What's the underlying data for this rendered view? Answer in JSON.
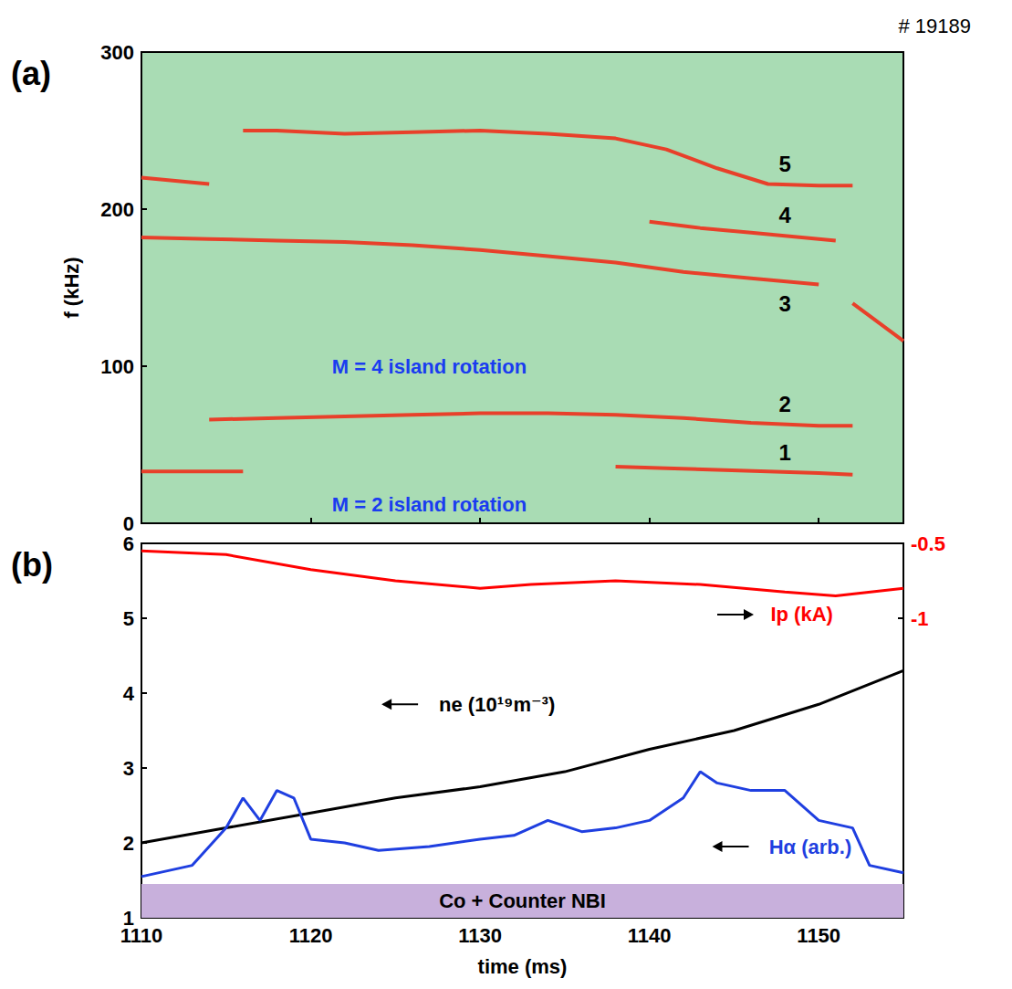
{
  "chart_data": [
    {
      "type": "line",
      "title": "# 19189",
      "panel_label": "(a)",
      "ylabel": "f (kHz)",
      "xlim": [
        1110,
        1155
      ],
      "xticks": [
        1110,
        1120,
        1130,
        1140,
        1150
      ],
      "ylim": [
        0,
        300
      ],
      "yticks": [
        0,
        100,
        200,
        300
      ],
      "tick_labels": "y",
      "grid": false,
      "color": "#e8402a",
      "series": [
        {
          "x": [
            1110,
            1112,
            1114,
            1116,
            1117,
            1138,
            1141,
            1144,
            1147,
            1150,
            1152
          ],
          "values": [
            33,
            33,
            33,
            33,
            null,
            36,
            35,
            34,
            33,
            32,
            31
          ]
        },
        {
          "x": [
            1114,
            1118,
            1122,
            1126,
            1130,
            1134,
            1138,
            1142,
            1146,
            1150,
            1152
          ],
          "values": [
            66,
            67,
            68,
            69,
            70,
            70,
            69,
            67,
            64,
            62,
            62
          ]
        },
        {
          "x": [
            1110,
            1114,
            1118,
            1122,
            1126,
            1130,
            1134,
            1138,
            1142,
            1146,
            1150
          ],
          "values": [
            182,
            181,
            180,
            179,
            177,
            174,
            170,
            166,
            160,
            156,
            152
          ]
        },
        {
          "x": [
            1140,
            1143,
            1146,
            1149,
            1151
          ],
          "values": [
            192,
            188,
            185,
            182,
            180
          ]
        },
        {
          "x": [
            1110,
            1112,
            1114,
            1115,
            1116,
            1118,
            1122,
            1126,
            1130,
            1134,
            1138,
            1141,
            1144,
            1147,
            1150,
            1152
          ],
          "values": [
            220,
            218,
            216,
            null,
            250,
            250,
            248,
            249,
            250,
            248,
            245,
            238,
            226,
            216,
            215,
            215
          ]
        },
        {
          "x": [
            1152,
            1153,
            1154,
            1155
          ],
          "values": [
            140,
            132,
            124,
            116
          ]
        }
      ],
      "annotations": [
        {
          "text": "M = 4 island rotation",
          "x": 1127,
          "y": 100,
          "color": "#1a3cf0"
        },
        {
          "text": "M = 2 island rotation",
          "x": 1127,
          "y": 12,
          "color": "#1a3cf0"
        },
        {
          "text": "1",
          "x": 1148,
          "y": 45,
          "color": "#000000"
        },
        {
          "text": "2",
          "x": 1148,
          "y": 76,
          "color": "#000000"
        },
        {
          "text": "3",
          "x": 1148,
          "y": 140,
          "color": "#000000"
        },
        {
          "text": "4",
          "x": 1148,
          "y": 196,
          "color": "#000000"
        },
        {
          "text": "5",
          "x": 1148,
          "y": 229,
          "color": "#000000"
        }
      ]
    },
    {
      "type": "line",
      "panel_label": "(b)",
      "xlabel": "time (ms)",
      "xlim": [
        1110,
        1155
      ],
      "xticks": [
        1110,
        1120,
        1130,
        1140,
        1150
      ],
      "ylim": [
        1,
        6
      ],
      "yticks": [
        1,
        2,
        3,
        4,
        5,
        6
      ],
      "y2lim": [
        -3,
        -0.5
      ],
      "y2ticks": [
        -1,
        -0.5
      ],
      "grid": false,
      "series": [
        {
          "color": "#ff0000",
          "axis": "y2",
          "x": [
            1110,
            1115,
            1120,
            1125,
            1130,
            1133,
            1138,
            1143,
            1148,
            1151,
            1155
          ],
          "values": [
            -0.55,
            -0.575,
            -0.675,
            -0.75,
            -0.8,
            -0.775,
            -0.75,
            -0.775,
            -0.825,
            -0.85,
            -0.8
          ]
        },
        {
          "color": "#000000",
          "x": [
            1110,
            1115,
            1120,
            1125,
            1130,
            1135,
            1140,
            1145,
            1150,
            1155
          ],
          "values": [
            2.0,
            2.2,
            2.4,
            2.6,
            2.75,
            2.95,
            3.25,
            3.5,
            3.85,
            4.3
          ]
        },
        {
          "color": "#1f3fe0",
          "x": [
            1110,
            1113,
            1115,
            1116,
            1117,
            1118,
            1119,
            1120,
            1122,
            1124,
            1127,
            1130,
            1132,
            1134,
            1136,
            1138,
            1140,
            1142,
            1143,
            1144,
            1146,
            1148,
            1150,
            1152,
            1153,
            1155
          ],
          "values": [
            1.55,
            1.7,
            2.2,
            2.6,
            2.3,
            2.7,
            2.6,
            2.05,
            2.0,
            1.9,
            1.95,
            2.05,
            2.1,
            2.3,
            2.15,
            2.2,
            2.3,
            2.6,
            2.95,
            2.8,
            2.7,
            2.7,
            2.3,
            2.2,
            1.7,
            1.6
          ]
        }
      ],
      "band": {
        "label": "Co + Counter NBI",
        "ylim": [
          1,
          1.45
        ],
        "color": "#c8b0dc"
      },
      "annotations": [
        {
          "text": "Ip (kA)",
          "x": 1149,
          "y": 5.05,
          "color": "#ff0000"
        },
        {
          "text": "ne (10¹⁹m⁻³)",
          "x": 1131,
          "y": 3.85,
          "color": "#000000"
        },
        {
          "text": "Hα (arb.)",
          "x": 1149.5,
          "y": 1.95,
          "color": "#1f3fe0"
        }
      ]
    }
  ]
}
